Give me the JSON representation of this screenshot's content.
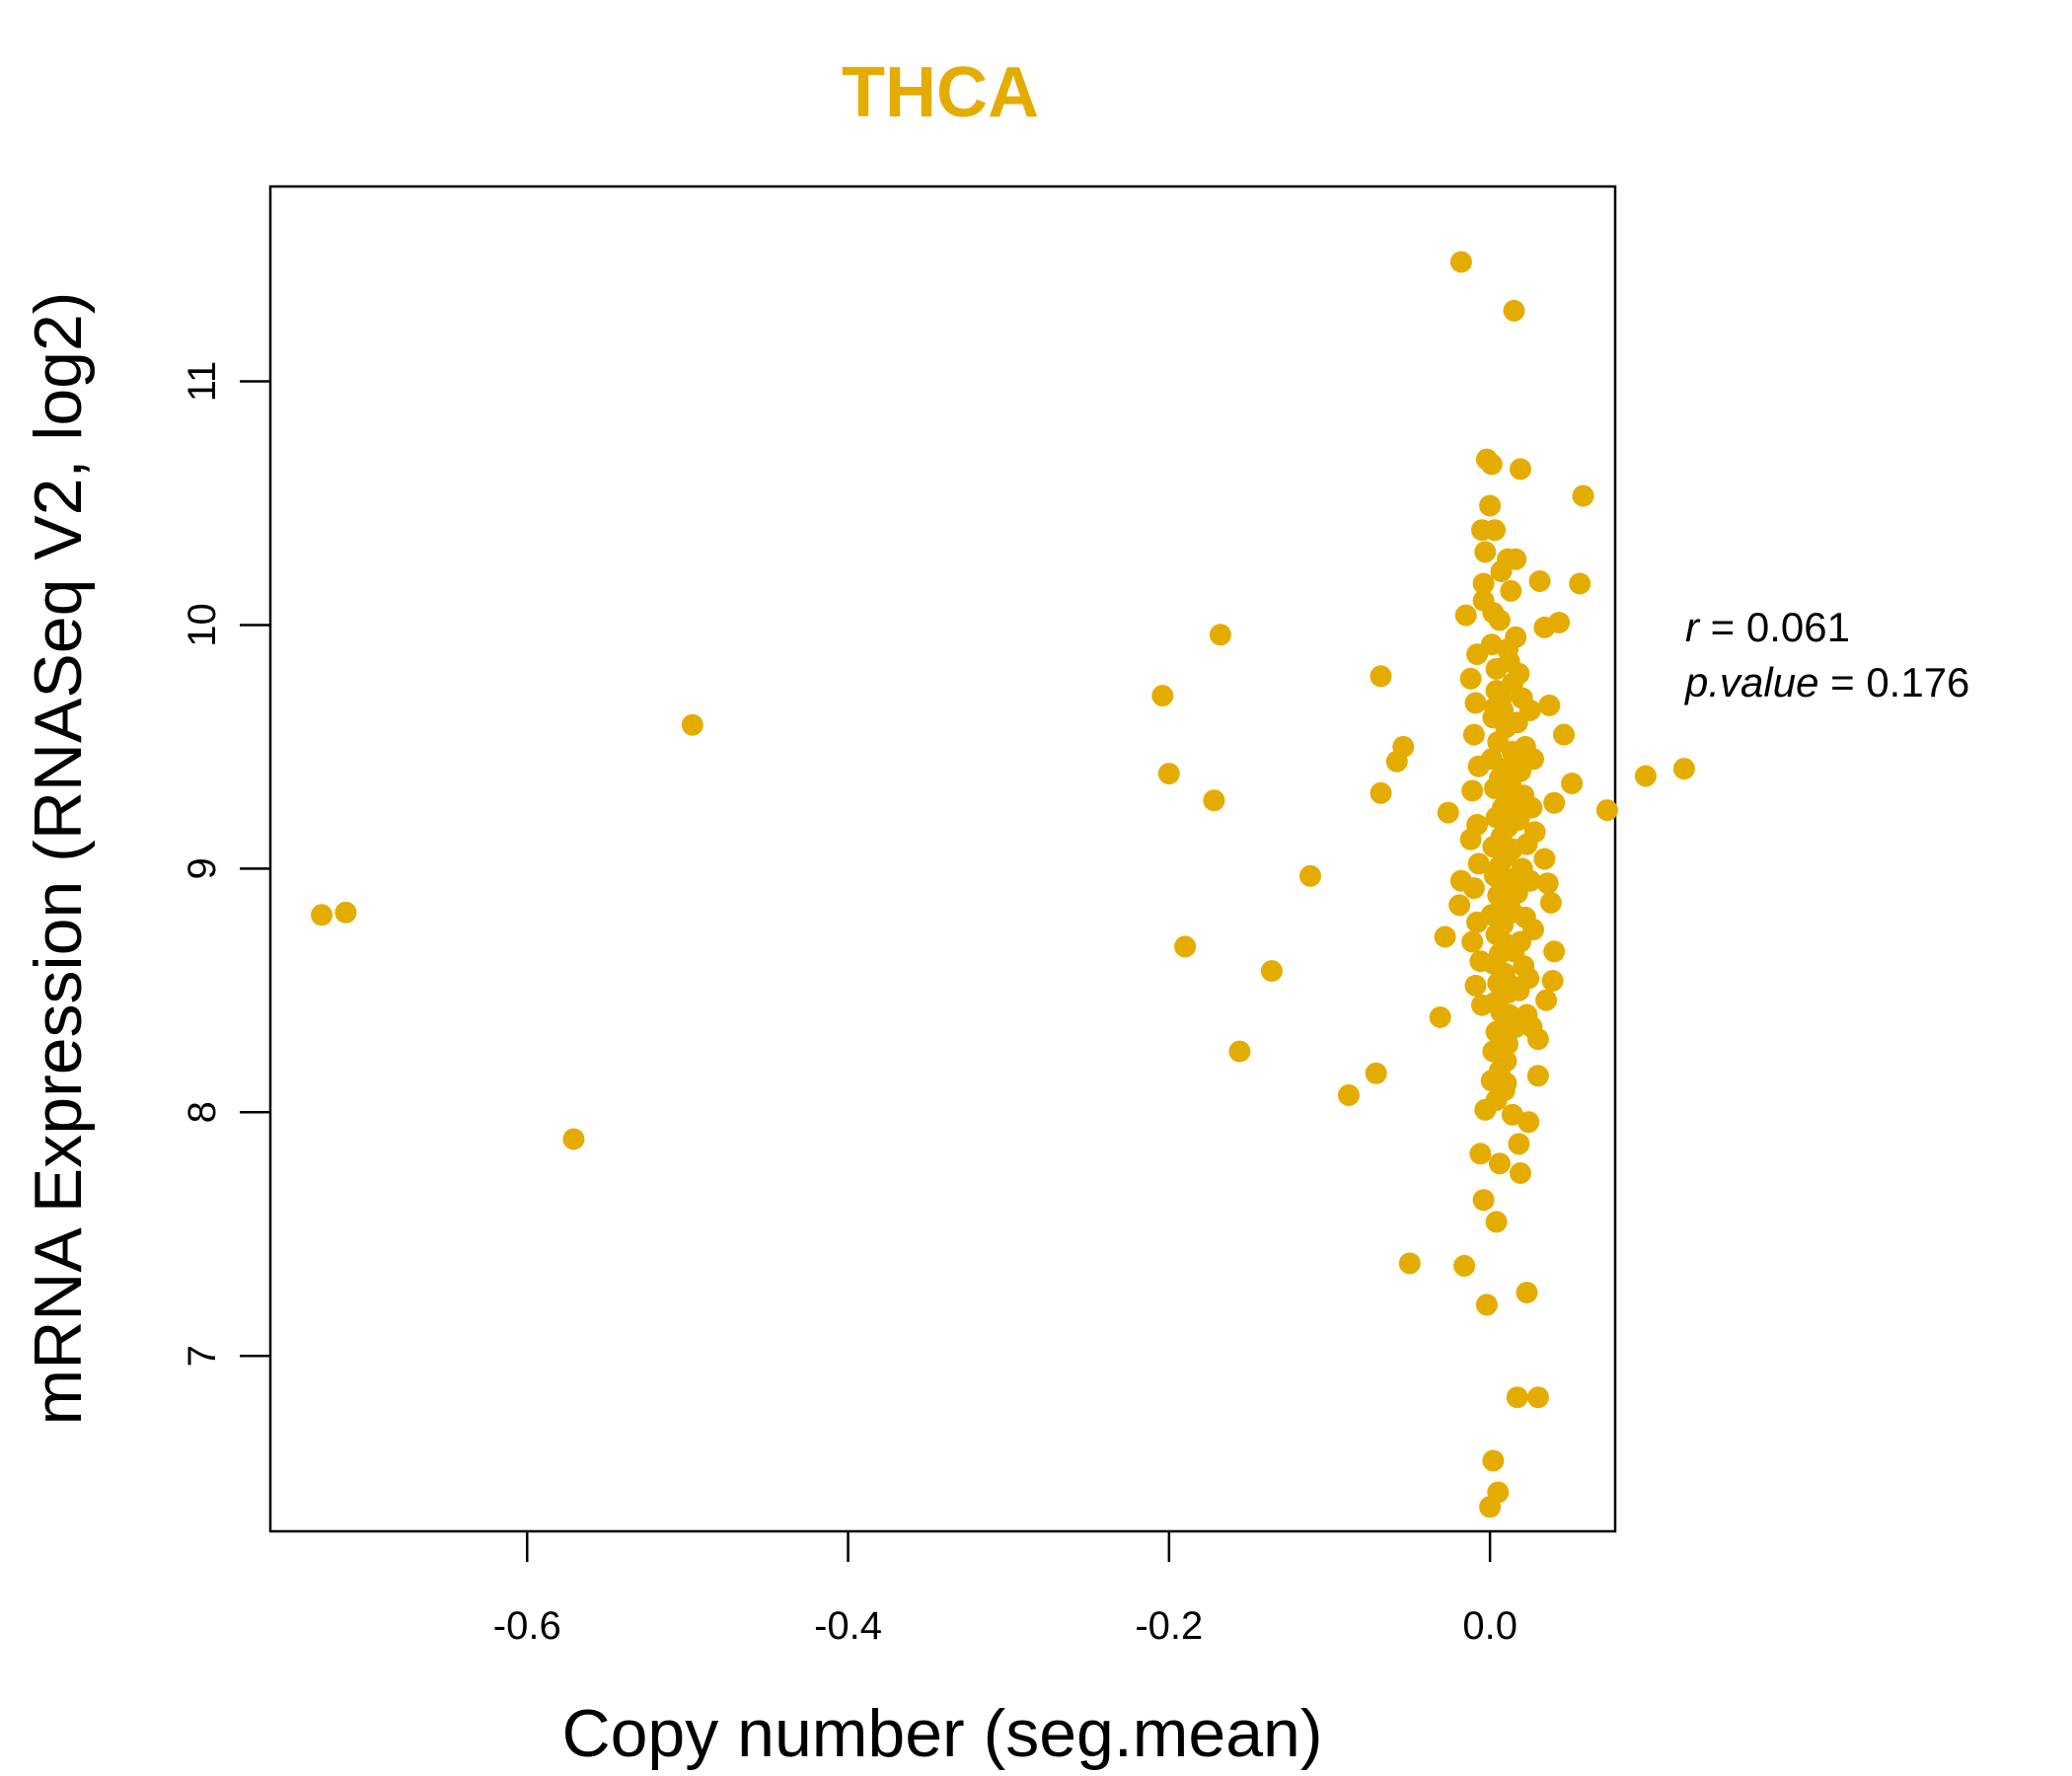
{
  "chart_data": {
    "type": "scatter",
    "title": "THCA",
    "xlabel": "Copy number (seg.mean)",
    "ylabel": "mRNA Expression (RNASeq V2, log2)",
    "xlim": [
      -0.76,
      0.078
    ],
    "ylim": [
      6.28,
      11.8
    ],
    "xticks": [
      -0.6,
      -0.4,
      -0.2,
      0.0
    ],
    "xtick_labels": [
      "-0.6",
      "-0.4",
      "-0.2",
      "0.0"
    ],
    "yticks": [
      7,
      8,
      9,
      10,
      11
    ],
    "ytick_labels": [
      "7",
      "8",
      "9",
      "10",
      "11"
    ],
    "point_color": "#E5AC00",
    "stats": {
      "r_label": "r",
      "r_value": "0.061",
      "p_label": "p.value",
      "p_value": "0.176"
    },
    "points": [
      [
        -0.728,
        8.81
      ],
      [
        -0.713,
        8.82
      ],
      [
        -0.571,
        7.89
      ],
      [
        -0.497,
        9.59
      ],
      [
        -0.204,
        9.71
      ],
      [
        -0.2,
        9.39
      ],
      [
        -0.168,
        9.96
      ],
      [
        -0.172,
        9.28
      ],
      [
        -0.19,
        8.68
      ],
      [
        -0.156,
        8.25
      ],
      [
        -0.136,
        8.58
      ],
      [
        -0.112,
        8.97
      ],
      [
        -0.088,
        8.07
      ],
      [
        -0.071,
        8.16
      ],
      [
        -0.068,
        9.79
      ],
      [
        -0.068,
        9.31
      ],
      [
        -0.058,
        9.44
      ],
      [
        -0.054,
        9.5
      ],
      [
        -0.05,
        7.38
      ],
      [
        -0.031,
        8.39
      ],
      [
        -0.028,
        8.72
      ],
      [
        -0.026,
        9.23
      ],
      [
        -0.018,
        11.49
      ],
      [
        -0.016,
        7.37
      ],
      [
        -0.002,
        10.68
      ],
      [
        0.001,
        10.66
      ],
      [
        0.019,
        10.64
      ],
      [
        0.058,
        10.53
      ],
      [
        0.0,
        10.49
      ],
      [
        0.015,
        11.29
      ],
      [
        0.056,
        10.17
      ],
      [
        0.031,
        10.18
      ],
      [
        0.043,
        10.01
      ],
      [
        0.034,
        9.99
      ],
      [
        0.037,
        9.67
      ],
      [
        0.046,
        9.55
      ],
      [
        0.051,
        9.35
      ],
      [
        0.04,
        9.27
      ],
      [
        0.073,
        9.24
      ],
      [
        0.097,
        9.38
      ],
      [
        0.121,
        9.41
      ],
      [
        0.034,
        9.04
      ],
      [
        0.036,
        8.94
      ],
      [
        0.038,
        8.86
      ],
      [
        0.04,
        8.66
      ],
      [
        0.039,
        8.54
      ],
      [
        0.035,
        8.46
      ],
      [
        0.03,
        8.3
      ],
      [
        0.03,
        8.15
      ],
      [
        0.024,
        7.96
      ],
      [
        0.018,
        7.87
      ],
      [
        0.019,
        7.75
      ],
      [
        0.006,
        7.79
      ],
      [
        -0.004,
        7.64
      ],
      [
        0.004,
        7.55
      ],
      [
        0.023,
        7.26
      ],
      [
        -0.002,
        7.21
      ],
      [
        0.017,
        6.83
      ],
      [
        0.03,
        6.83
      ],
      [
        0.002,
        6.57
      ],
      [
        0.005,
        6.44
      ],
      [
        0.0,
        6.38
      ],
      [
        -0.018,
        8.95
      ],
      [
        -0.019,
        8.85
      ],
      [
        -0.015,
        10.04
      ],
      [
        -0.012,
        9.78
      ],
      [
        -0.01,
        9.55
      ],
      [
        0.003,
        10.39
      ],
      [
        -0.005,
        10.39
      ],
      [
        -0.003,
        10.3
      ],
      [
        0.011,
        10.27
      ],
      [
        0.016,
        10.27
      ],
      [
        0.007,
        10.22
      ],
      [
        0.013,
        10.14
      ],
      [
        -0.004,
        10.17
      ],
      [
        0.002,
        10.05
      ],
      [
        0.012,
        9.85
      ],
      [
        0.004,
        9.73
      ],
      [
        0.008,
        9.65
      ],
      [
        0.002,
        9.62
      ],
      [
        0.01,
        9.58
      ],
      [
        0.005,
        9.52
      ],
      [
        0.014,
        9.48
      ],
      [
        0.001,
        9.45
      ],
      [
        0.009,
        9.41
      ],
      [
        0.006,
        9.37
      ],
      [
        0.003,
        9.33
      ],
      [
        0.012,
        9.29
      ],
      [
        0.008,
        9.25
      ],
      [
        0.004,
        9.21
      ],
      [
        0.011,
        9.17
      ],
      [
        0.007,
        9.13
      ],
      [
        0.002,
        9.09
      ],
      [
        0.01,
        9.05
      ],
      [
        0.006,
        9.01
      ],
      [
        0.003,
        8.97
      ],
      [
        0.009,
        8.93
      ],
      [
        0.005,
        8.89
      ],
      [
        0.012,
        8.85
      ],
      [
        0.001,
        8.81
      ],
      [
        0.008,
        8.77
      ],
      [
        0.004,
        8.73
      ],
      [
        0.01,
        8.69
      ],
      [
        0.006,
        8.65
      ],
      [
        0.002,
        8.61
      ],
      [
        0.009,
        8.57
      ],
      [
        0.005,
        8.53
      ],
      [
        0.011,
        8.49
      ],
      [
        0.003,
        8.45
      ],
      [
        0.007,
        8.41
      ],
      [
        0.013,
        8.37
      ],
      [
        0.004,
        8.33
      ],
      [
        0.008,
        8.29
      ],
      [
        0.002,
        8.25
      ],
      [
        0.01,
        8.21
      ],
      [
        0.006,
        8.17
      ],
      [
        0.001,
        8.13
      ],
      [
        0.009,
        8.09
      ],
      [
        0.004,
        8.05
      ],
      [
        -0.003,
        8.01
      ],
      [
        0.014,
        7.99
      ],
      [
        -0.006,
        7.83
      ],
      [
        0.016,
        9.95
      ],
      [
        0.018,
        9.8
      ],
      [
        0.02,
        9.7
      ],
      [
        0.017,
        9.6
      ],
      [
        0.022,
        9.5
      ],
      [
        0.019,
        9.4
      ],
      [
        0.021,
        9.3
      ],
      [
        0.018,
        9.2
      ],
      [
        0.023,
        9.1
      ],
      [
        0.02,
        9.0
      ],
      [
        0.017,
        8.9
      ],
      [
        0.022,
        8.8
      ],
      [
        0.019,
        8.7
      ],
      [
        0.021,
        8.6
      ],
      [
        0.018,
        8.5
      ],
      [
        0.023,
        8.4
      ],
      [
        0.016,
        8.35
      ],
      [
        -0.008,
        9.88
      ],
      [
        -0.009,
        9.68
      ],
      [
        -0.007,
        9.42
      ],
      [
        -0.011,
        9.32
      ],
      [
        -0.008,
        9.18
      ],
      [
        -0.012,
        9.12
      ],
      [
        -0.007,
        9.02
      ],
      [
        -0.01,
        8.92
      ],
      [
        -0.008,
        8.78
      ],
      [
        -0.011,
        8.7
      ],
      [
        -0.006,
        8.62
      ],
      [
        -0.009,
        8.52
      ],
      [
        -0.005,
        8.44
      ],
      [
        0.025,
        9.65
      ],
      [
        0.027,
        9.45
      ],
      [
        0.026,
        9.25
      ],
      [
        0.028,
        9.15
      ],
      [
        0.025,
        8.95
      ],
      [
        0.027,
        8.75
      ],
      [
        0.024,
        8.55
      ],
      [
        0.026,
        8.35
      ],
      [
        -0.004,
        10.1
      ],
      [
        0.006,
        10.02
      ],
      [
        0.001,
        9.92
      ],
      [
        0.011,
        9.9
      ],
      [
        0.004,
        9.82
      ],
      [
        0.014,
        9.76
      ],
      [
        0.007,
        9.7
      ],
      [
        0.003,
        9.66
      ],
      [
        0.013,
        9.6
      ],
      [
        0.015,
        9.44
      ],
      [
        0.013,
        9.34
      ],
      [
        0.016,
        9.22
      ],
      [
        0.014,
        9.08
      ],
      [
        0.016,
        8.96
      ],
      [
        0.014,
        8.82
      ],
      [
        0.015,
        8.66
      ],
      [
        0.013,
        8.52
      ],
      [
        0.012,
        8.4
      ],
      [
        0.011,
        8.28
      ],
      [
        0.01,
        8.12
      ]
    ]
  }
}
